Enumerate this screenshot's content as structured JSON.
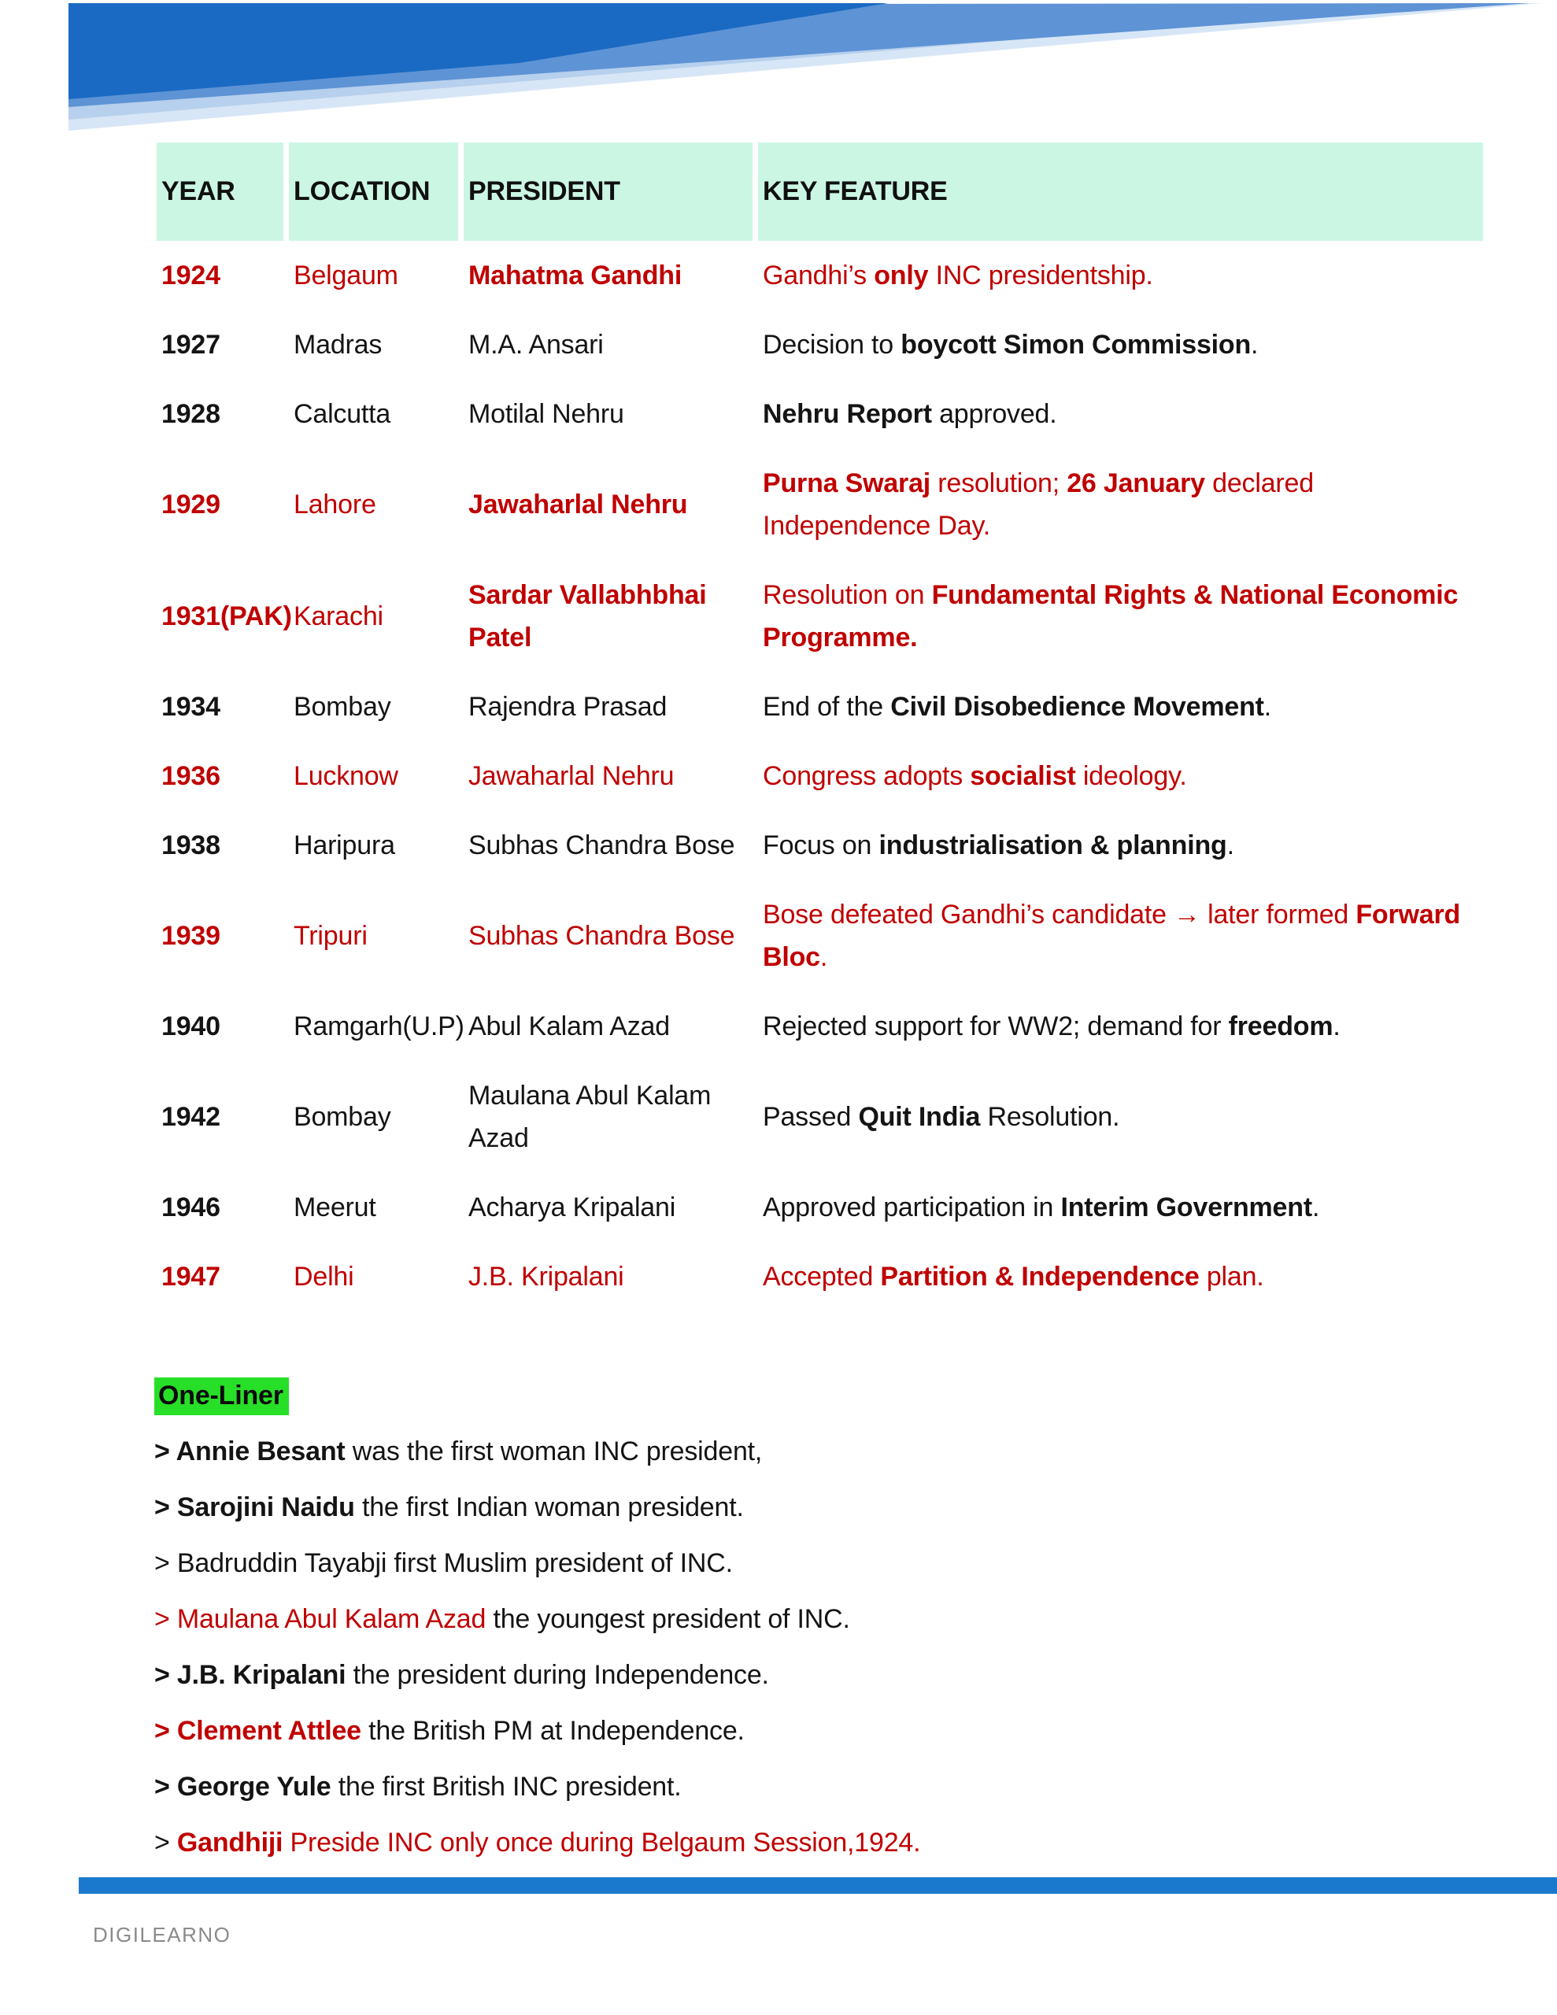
{
  "colors": {
    "red": "#c00000",
    "black": "#141414",
    "mint": "#ccf6e4",
    "green": "#28df28",
    "bar_blue": "#1b79cd",
    "brand_gray": "#8a8a8a",
    "banner_dark": "#1a6ac3",
    "banner_mid": "#5e93d5",
    "banner_light": "#b6d0ed",
    "banner_vlight": "#d7e6f6"
  },
  "table": {
    "headers": [
      "YEAR",
      "LOCATION",
      "PRESIDENT",
      "KEY FEATURE"
    ],
    "rows": [
      {
        "color": "red",
        "year": "1924",
        "location": "Belgaum",
        "president": "Mahatma Gandhi",
        "president_bold": true,
        "feature": [
          {
            "t": "Gandhi’s ",
            "b": false
          },
          {
            "t": "only",
            "b": true
          },
          {
            "t": " INC presidentship.",
            "b": false
          }
        ]
      },
      {
        "color": "black",
        "year": "1927",
        "location": "Madras",
        "president": "M.A. Ansari",
        "president_bold": false,
        "feature": [
          {
            "t": "Decision to ",
            "b": false
          },
          {
            "t": "boycott Simon Commission",
            "b": true
          },
          {
            "t": ".",
            "b": false
          }
        ]
      },
      {
        "color": "black",
        "year": "1928",
        "location": "Calcutta",
        "president": "Motilal Nehru",
        "president_bold": false,
        "feature": [
          {
            "t": "Nehru Report",
            "b": true
          },
          {
            "t": " approved.",
            "b": false
          }
        ]
      },
      {
        "color": "red",
        "year": "1929",
        "location": "Lahore",
        "president": "Jawaharlal Nehru",
        "president_bold": true,
        "feature": [
          {
            "t": "Purna Swaraj",
            "b": true
          },
          {
            "t": " resolution; ",
            "b": false
          },
          {
            "t": "26 January",
            "b": true
          },
          {
            "t": " declared Independence Day.",
            "b": false
          }
        ]
      },
      {
        "color": "red",
        "year": "1931(PAK)",
        "location": "Karachi",
        "president": "Sardar Vallabhbhai Patel",
        "president_bold": true,
        "feature": [
          {
            "t": "Resolution on ",
            "b": false
          },
          {
            "t": "Fundamental Rights & National Economic Programme.",
            "b": true
          }
        ]
      },
      {
        "color": "black",
        "year": "1934",
        "location": "Bombay",
        "president": "Rajendra Prasad",
        "president_bold": false,
        "feature": [
          {
            "t": "End of the ",
            "b": false
          },
          {
            "t": "Civil Disobedience Movement",
            "b": true
          },
          {
            "t": ".",
            "b": false
          }
        ]
      },
      {
        "color": "red",
        "year": "1936",
        "location": "Lucknow",
        "president": "Jawaharlal Nehru",
        "president_bold": false,
        "feature": [
          {
            "t": "Congress adopts ",
            "b": false
          },
          {
            "t": "socialist",
            "b": true
          },
          {
            "t": " ideology.",
            "b": false
          }
        ]
      },
      {
        "color": "black",
        "year": "1938",
        "location": "Haripura",
        "president": "Subhas Chandra Bose",
        "president_bold": false,
        "feature": [
          {
            "t": "Focus on ",
            "b": false
          },
          {
            "t": "industrialisation & planning",
            "b": true
          },
          {
            "t": ".",
            "b": false
          }
        ]
      },
      {
        "color": "red",
        "year": "1939",
        "location": "Tripuri",
        "president": "Subhas Chandra Bose",
        "president_bold": false,
        "feature": [
          {
            "t": "Bose defeated Gandhi’s candidate → later formed ",
            "b": false
          },
          {
            "t": "Forward Bloc",
            "b": true
          },
          {
            "t": ".",
            "b": false
          }
        ]
      },
      {
        "color": "black",
        "year": "1940",
        "location": "Ramgarh(U.P)",
        "president": "Abul Kalam Azad",
        "president_bold": false,
        "feature": [
          {
            "t": "Rejected support for WW2; demand for ",
            "b": false
          },
          {
            "t": "freedom",
            "b": true
          },
          {
            "t": ".",
            "b": false
          }
        ]
      },
      {
        "color": "black",
        "year": "1942",
        "location": "Bombay",
        "president": "Maulana Abul Kalam Azad",
        "president_bold": false,
        "feature": [
          {
            "t": "Passed ",
            "b": false
          },
          {
            "t": "Quit India",
            "b": true
          },
          {
            "t": " Resolution.",
            "b": false
          }
        ]
      },
      {
        "color": "black",
        "year": "1946",
        "location": "Meerut",
        "president": "Acharya Kripalani",
        "president_bold": false,
        "feature": [
          {
            "t": "Approved participation in ",
            "b": false
          },
          {
            "t": "Interim Government",
            "b": true
          },
          {
            "t": ".",
            "b": false
          }
        ]
      },
      {
        "color": "red",
        "year": "1947",
        "location": "Delhi",
        "president": "J.B. Kripalani",
        "president_bold": false,
        "feature": [
          {
            "t": "Accepted ",
            "b": false
          },
          {
            "t": "Partition & Independence",
            "b": true
          },
          {
            "t": " plan.",
            "b": false
          }
        ]
      }
    ]
  },
  "oneliner": {
    "heading": "One-Liner",
    "items": [
      {
        "segments": [
          {
            "t": "> Annie Besant",
            "b": true,
            "c": "k"
          },
          {
            "t": " was the first woman INC president,",
            "b": false,
            "c": "k"
          }
        ]
      },
      {
        "segments": [
          {
            "t": "> Sarojini Naidu",
            "b": true,
            "c": "k"
          },
          {
            "t": " the first Indian woman president.",
            "b": false,
            "c": "k"
          }
        ]
      },
      {
        "segments": [
          {
            "t": "> Badruddin Tayabji first Muslim president of INC.",
            "b": false,
            "c": "k"
          }
        ]
      },
      {
        "segments": [
          {
            "t": "> Maulana Abul Kalam Azad",
            "b": false,
            "c": "r"
          },
          {
            "t": " the youngest president of INC.",
            "b": false,
            "c": "k"
          }
        ]
      },
      {
        "segments": [
          {
            "t": "> J.B. Kripalani",
            "b": true,
            "c": "k"
          },
          {
            "t": " the president during Independence.",
            "b": false,
            "c": "k"
          }
        ]
      },
      {
        "segments": [
          {
            "t": "> Clement Attlee",
            "b": true,
            "c": "r"
          },
          {
            "t": " the British PM at Independence.",
            "b": false,
            "c": "k"
          }
        ]
      },
      {
        "segments": [
          {
            "t": "> George Yule",
            "b": true,
            "c": "k"
          },
          {
            "t": " the first British INC president.",
            "b": false,
            "c": "k"
          }
        ]
      },
      {
        "segments": [
          {
            "t": "> ",
            "b": false,
            "c": "k"
          },
          {
            "t": "Gandhiji",
            "b": true,
            "c": "r"
          },
          {
            "t": " Preside INC only once during Belgaum Session,1924.",
            "b": false,
            "c": "r"
          }
        ]
      }
    ]
  },
  "footer": {
    "brand": "DIGILEARNO"
  }
}
